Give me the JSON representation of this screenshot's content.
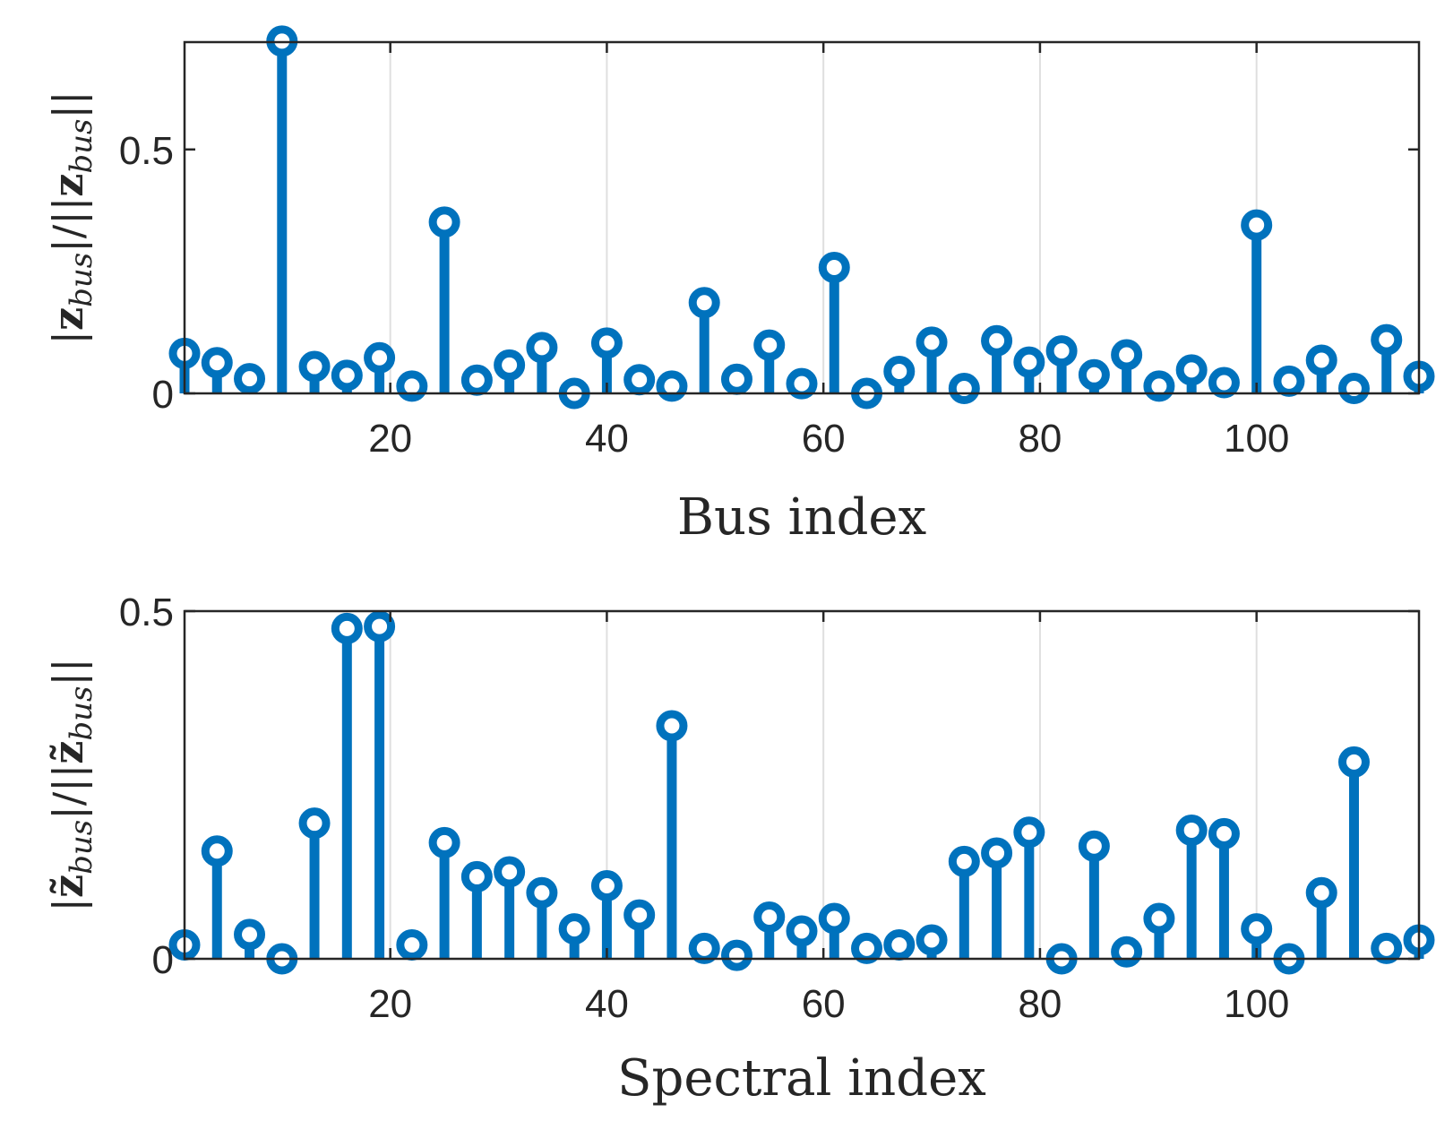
{
  "chart_data": [
    {
      "type": "stem",
      "xlabel": "Bus index",
      "ylabel": {
        "abs_open": "|",
        "vec": "z",
        "sub": "bus",
        "mid": "|/||",
        "vec2": "z",
        "sub2": "bus",
        "close": "||"
      },
      "xlim": [
        1,
        115
      ],
      "ylim": [
        0,
        0.72
      ],
      "xticks": [
        "20",
        "40",
        "60",
        "80",
        "100"
      ],
      "xtick_values": [
        20,
        40,
        60,
        80,
        100
      ],
      "yticks": [
        "0",
        "0.5"
      ],
      "ytick_values": [
        0,
        0.5
      ],
      "grid": "x-only",
      "color": "#0072BD",
      "x": [
        1,
        4,
        7,
        10,
        13,
        16,
        19,
        22,
        25,
        28,
        31,
        34,
        37,
        40,
        43,
        46,
        49,
        52,
        55,
        58,
        61,
        64,
        67,
        70,
        73,
        76,
        79,
        82,
        85,
        88,
        91,
        94,
        97,
        100,
        103,
        106,
        109,
        112,
        115
      ],
      "values": [
        0.082,
        0.063,
        0.03,
        0.722,
        0.055,
        0.037,
        0.073,
        0.015,
        0.351,
        0.027,
        0.058,
        0.094,
        0.0,
        0.103,
        0.028,
        0.015,
        0.186,
        0.029,
        0.099,
        0.02,
        0.258,
        0.0,
        0.045,
        0.105,
        0.01,
        0.108,
        0.064,
        0.087,
        0.038,
        0.079,
        0.015,
        0.048,
        0.022,
        0.345,
        0.025,
        0.068,
        0.01,
        0.11,
        0.035
      ]
    },
    {
      "type": "stem",
      "xlabel": "Spectral index",
      "ylabel": {
        "abs_open": "|",
        "vec": "z̃",
        "sub": "bus",
        "mid": "|/||",
        "vec2": "z̃",
        "sub2": "bus",
        "close": "||"
      },
      "xlim": [
        1,
        115
      ],
      "ylim": [
        0,
        0.5
      ],
      "xticks": [
        "20",
        "40",
        "60",
        "80",
        "100"
      ],
      "xtick_values": [
        20,
        40,
        60,
        80,
        100
      ],
      "yticks": [
        "0",
        "0.5"
      ],
      "ytick_values": [
        0,
        0.5
      ],
      "grid": "x-only",
      "color": "#0072BD",
      "x": [
        1,
        4,
        7,
        10,
        13,
        16,
        19,
        22,
        25,
        28,
        31,
        34,
        37,
        40,
        43,
        46,
        49,
        52,
        55,
        58,
        61,
        64,
        67,
        70,
        73,
        76,
        79,
        82,
        85,
        88,
        91,
        94,
        97,
        100,
        103,
        106,
        109,
        112,
        115
      ],
      "values": [
        0.02,
        0.155,
        0.035,
        0.0,
        0.195,
        0.475,
        0.478,
        0.02,
        0.167,
        0.118,
        0.125,
        0.095,
        0.043,
        0.105,
        0.063,
        0.335,
        0.015,
        0.005,
        0.06,
        0.04,
        0.058,
        0.015,
        0.02,
        0.027,
        0.14,
        0.152,
        0.182,
        0.0,
        0.162,
        0.01,
        0.058,
        0.185,
        0.18,
        0.043,
        0.0,
        0.095,
        0.283,
        0.015,
        0.027
      ]
    }
  ]
}
